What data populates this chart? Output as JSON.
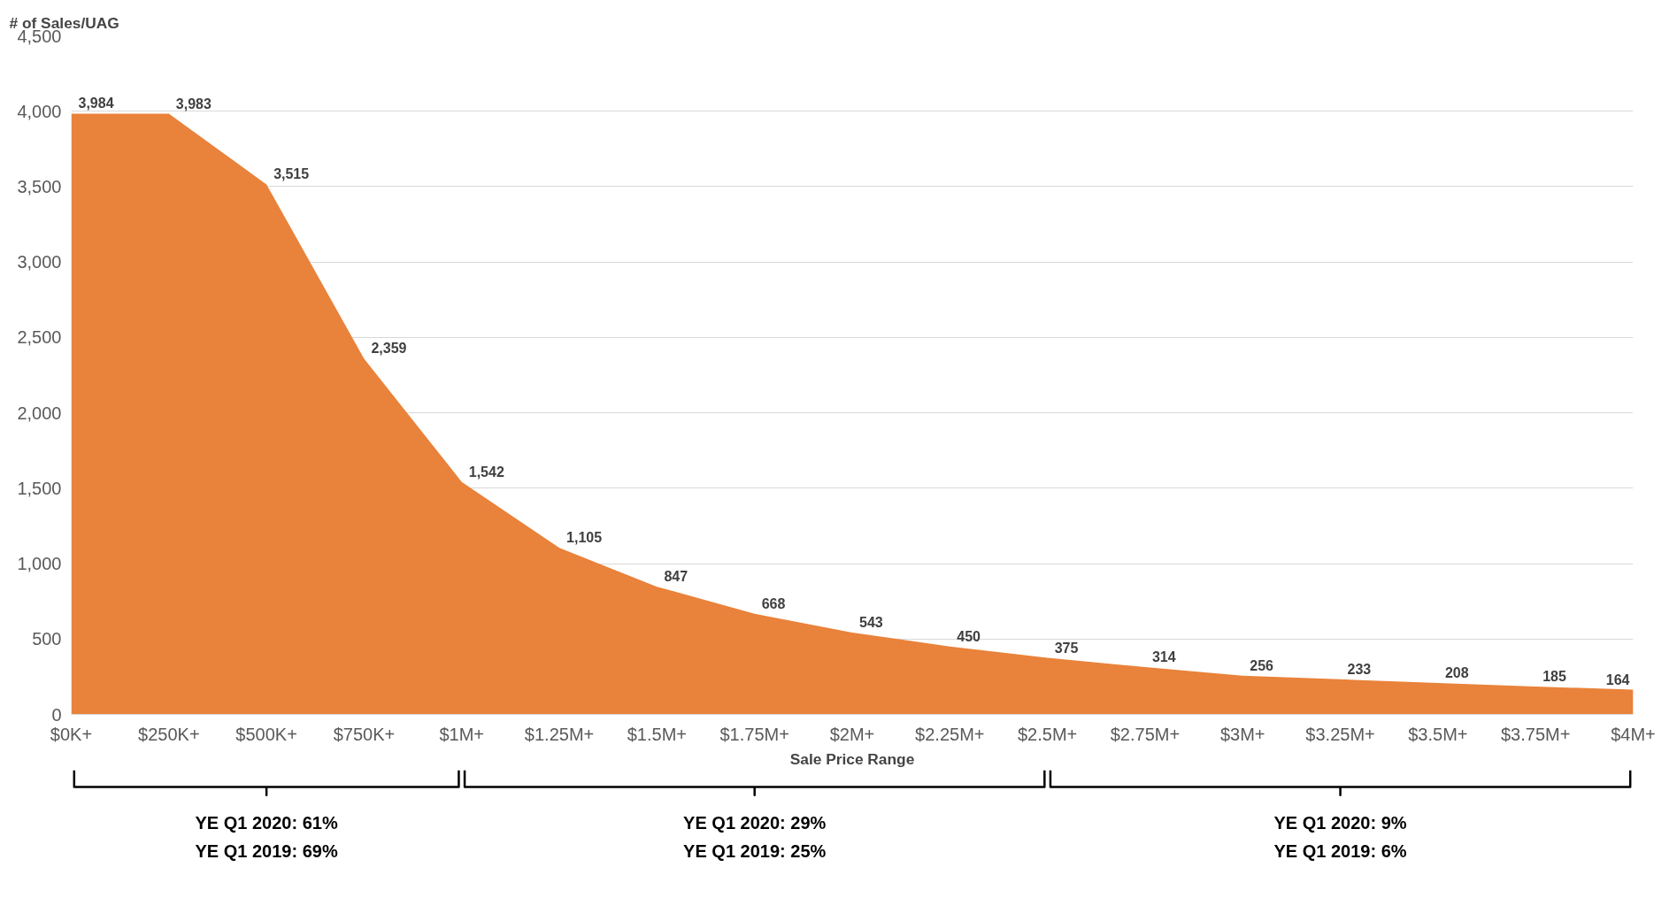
{
  "chart_data": {
    "type": "area",
    "ylabel": "# of Sales/UAG",
    "xlabel": "Sale Price Range",
    "categories": [
      "$0K+",
      "$250K+",
      "$500K+",
      "$750K+",
      "$1M+",
      "$1.25M+",
      "$1.5M+",
      "$1.75M+",
      "$2M+",
      "$2.25M+",
      "$2.5M+",
      "$2.75M+",
      "$3M+",
      "$3.25M+",
      "$3.5M+",
      "$3.75M+",
      "$4M+"
    ],
    "values": [
      3984,
      3983,
      3515,
      2359,
      1542,
      1105,
      847,
      668,
      543,
      450,
      375,
      314,
      256,
      233,
      208,
      185,
      164
    ],
    "value_labels": [
      "3,984",
      "3,983",
      "3,515",
      "2,359",
      "1,542",
      "1,105",
      "847",
      "668",
      "543",
      "450",
      "375",
      "314",
      "256",
      "233",
      "208",
      "185",
      "164"
    ],
    "color": "#e9823a",
    "ylim": [
      0,
      4500
    ],
    "yticks": [
      0,
      500,
      {
        "value": 1000,
        "label": "1,000"
      },
      {
        "value": 1500,
        "label": "1,500"
      },
      {
        "value": 2000,
        "label": "2,000"
      },
      {
        "value": 2500,
        "label": "2,500"
      },
      {
        "value": 3000,
        "label": "3,000"
      },
      {
        "value": 3500,
        "label": "3,500"
      },
      {
        "value": 4000,
        "label": "4,000"
      },
      {
        "value": 4500,
        "label": "4,500"
      }
    ],
    "grid": "y",
    "annotations": [
      "YE Q1 2020: 61%",
      "YE Q1 2019: 69%",
      "YE Q1 2020: 29%",
      "YE Q1 2019: 25%",
      "YE Q1 2020: 9%",
      "YE Q1 2019: 6%"
    ]
  }
}
